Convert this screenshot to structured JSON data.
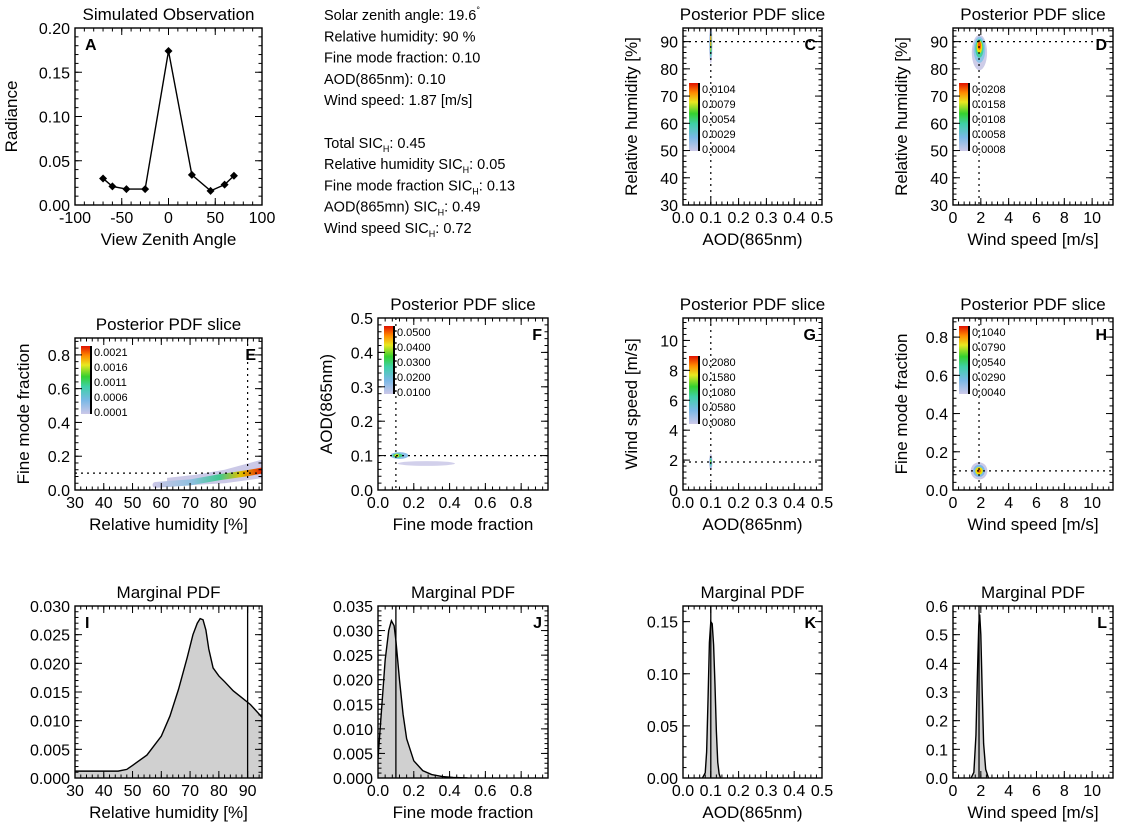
{
  "info": {
    "lines": [
      {
        "parts": [
          [
            "Solar zenith angle:  19.6",
            ""
          ],
          [
            "°",
            "sup"
          ]
        ]
      },
      {
        "parts": [
          [
            "Relative humidity:   90 %",
            ""
          ]
        ]
      },
      {
        "parts": [
          [
            "Fine mode fraction:   0.10",
            ""
          ]
        ]
      },
      {
        "parts": [
          [
            "AOD(865nm):   0.10",
            ""
          ]
        ]
      },
      {
        "parts": [
          [
            "Wind speed:    1.87 [m/s]",
            ""
          ]
        ]
      },
      {
        "parts": [
          [
            "",
            ""
          ]
        ]
      },
      {
        "parts": [
          [
            "Total SIC",
            ""
          ],
          [
            "H",
            "sub"
          ],
          [
            ":  0.45",
            ""
          ]
        ]
      },
      {
        "parts": [
          [
            "Relative humidity SIC",
            ""
          ],
          [
            "H",
            "sub"
          ],
          [
            ":  0.05",
            ""
          ]
        ]
      },
      {
        "parts": [
          [
            "Fine mode fraction SIC",
            ""
          ],
          [
            "H",
            "sub"
          ],
          [
            ":  0.13",
            ""
          ]
        ]
      },
      {
        "parts": [
          [
            "AOD(865mn) SIC",
            ""
          ],
          [
            "H",
            "sub"
          ],
          [
            ":  0.49",
            ""
          ]
        ]
      },
      {
        "parts": [
          [
            "Wind speed SIC",
            ""
          ],
          [
            "H",
            "sub"
          ],
          [
            ":  0.72",
            ""
          ]
        ]
      }
    ]
  },
  "chart_data": [
    {
      "id": "A",
      "type": "line",
      "title": "Simulated Observation",
      "xlabel": "View Zenith Angle",
      "ylabel": "Radiance",
      "xlim": [
        -100,
        100
      ],
      "ylim": [
        0,
        0.2
      ],
      "xticks": [
        "-100",
        "-50",
        "0",
        "50",
        "100"
      ],
      "yticks": [
        "0.00",
        "0.05",
        "0.10",
        "0.15",
        "0.20"
      ],
      "x": [
        -70,
        -60,
        -45,
        -25,
        0,
        25,
        45,
        60,
        70
      ],
      "y": [
        0.03,
        0.021,
        0.018,
        0.018,
        0.174,
        0.034,
        0.016,
        0.023,
        0.033
      ],
      "marker": "diamond"
    },
    {
      "id": "C",
      "type": "heatmap",
      "title": "Posterior PDF slice",
      "xlabel": "AOD(865nm)",
      "ylabel": "Relative humidity [%]",
      "xlim": [
        0,
        0.5
      ],
      "ylim": [
        30,
        95
      ],
      "xticks": [
        "0.0",
        "0.1",
        "0.2",
        "0.3",
        "0.4",
        "0.5"
      ],
      "yticks": [
        "30",
        "40",
        "50",
        "60",
        "70",
        "80",
        "90"
      ],
      "true_x": 0.1,
      "true_y": 90,
      "colorbar": [
        "0.0104",
        "0.0079",
        "0.0054",
        "0.0029",
        "0.0004"
      ]
    },
    {
      "id": "D",
      "type": "heatmap",
      "title": "Posterior PDF slice",
      "xlabel": "Wind speed [m/s]",
      "ylabel": "Relative humidity [%]",
      "xlim": [
        0,
        11.5
      ],
      "ylim": [
        30,
        95
      ],
      "xticks": [
        "0",
        "2",
        "4",
        "6",
        "8",
        "10"
      ],
      "yticks": [
        "30",
        "40",
        "50",
        "60",
        "70",
        "80",
        "90"
      ],
      "true_x": 1.87,
      "true_y": 90,
      "colorbar": [
        "0.0208",
        "0.0158",
        "0.0108",
        "0.0058",
        "0.0008"
      ]
    },
    {
      "id": "E",
      "type": "heatmap",
      "title": "Posterior PDF slice",
      "xlabel": "Relative humidity [%]",
      "ylabel": "Fine mode fraction",
      "xlim": [
        30,
        95
      ],
      "ylim": [
        0,
        0.9
      ],
      "xticks": [
        "30",
        "40",
        "50",
        "60",
        "70",
        "80",
        "90"
      ],
      "yticks": [
        "0.0",
        "0.2",
        "0.4",
        "0.6",
        "0.8"
      ],
      "true_x": 90,
      "true_y": 0.1,
      "colorbar": [
        "0.0021",
        "0.0016",
        "0.0011",
        "0.0006",
        "0.0001"
      ]
    },
    {
      "id": "F",
      "type": "heatmap",
      "title": "Posterior PDF slice",
      "xlabel": "Fine mode fraction",
      "ylabel": "AOD(865nm)",
      "xlim": [
        0,
        0.95
      ],
      "ylim": [
        0,
        0.5
      ],
      "xticks": [
        "0.0",
        "0.2",
        "0.4",
        "0.6",
        "0.8"
      ],
      "yticks": [
        "0.0",
        "0.1",
        "0.2",
        "0.3",
        "0.4",
        "0.5"
      ],
      "true_x": 0.1,
      "true_y": 0.1,
      "colorbar": [
        "0.0500",
        "0.0400",
        "0.0300",
        "0.0200",
        "0.0100"
      ]
    },
    {
      "id": "G",
      "type": "heatmap",
      "title": "Posterior PDF slice",
      "xlabel": "AOD(865nm)",
      "ylabel": "Wind speed [m/s]",
      "xlim": [
        0,
        0.5
      ],
      "ylim": [
        0,
        11.5
      ],
      "xticks": [
        "0.0",
        "0.1",
        "0.2",
        "0.3",
        "0.4",
        "0.5"
      ],
      "yticks": [
        "0",
        "2",
        "4",
        "6",
        "8",
        "10"
      ],
      "true_x": 0.1,
      "true_y": 1.87,
      "colorbar": [
        "0.2080",
        "0.1580",
        "0.1080",
        "0.0580",
        "0.0080"
      ]
    },
    {
      "id": "H",
      "type": "heatmap",
      "title": "Posterior PDF slice",
      "xlabel": "Wind speed [m/s]",
      "ylabel": "Fine mode fraction",
      "xlim": [
        0,
        11.5
      ],
      "ylim": [
        0,
        0.9
      ],
      "xticks": [
        "0",
        "2",
        "4",
        "6",
        "8",
        "10"
      ],
      "yticks": [
        "0.0",
        "0.2",
        "0.4",
        "0.6",
        "0.8"
      ],
      "true_x": 1.87,
      "true_y": 0.1,
      "colorbar": [
        "0.1040",
        "0.0790",
        "0.0540",
        "0.0290",
        "0.0040"
      ]
    },
    {
      "id": "I",
      "type": "area",
      "title": "Marginal PDF",
      "xlabel": "Relative humidity [%]",
      "ylabel": "",
      "xlim": [
        30,
        95
      ],
      "ylim": [
        0,
        0.03
      ],
      "xticks": [
        "30",
        "40",
        "50",
        "60",
        "70",
        "80",
        "90"
      ],
      "yticks": [
        "0.000",
        "0.005",
        "0.010",
        "0.015",
        "0.020",
        "0.025",
        "0.030"
      ],
      "true_x": 90,
      "x": [
        30,
        40,
        45,
        48,
        50,
        55,
        60,
        63,
        66,
        69,
        71,
        72.5,
        73.5,
        74.5,
        75.5,
        76.5,
        78,
        80,
        82,
        85,
        88,
        91,
        95
      ],
      "y": [
        0.0012,
        0.0012,
        0.0012,
        0.0015,
        0.0022,
        0.004,
        0.0073,
        0.0108,
        0.0155,
        0.021,
        0.025,
        0.027,
        0.0278,
        0.0276,
        0.0258,
        0.0225,
        0.0192,
        0.0178,
        0.0168,
        0.0152,
        0.014,
        0.0128,
        0.0106
      ]
    },
    {
      "id": "J",
      "type": "area",
      "title": "Marginal PDF",
      "xlabel": "Fine mode fraction",
      "ylabel": "",
      "xlim": [
        0,
        0.95
      ],
      "ylim": [
        0,
        0.035
      ],
      "xticks": [
        "0.0",
        "0.2",
        "0.4",
        "0.6",
        "0.8"
      ],
      "yticks": [
        "0.000",
        "0.005",
        "0.010",
        "0.015",
        "0.020",
        "0.025",
        "0.030",
        "0.035"
      ],
      "true_x": 0.1,
      "x": [
        0,
        0.02,
        0.04,
        0.06,
        0.075,
        0.09,
        0.1,
        0.12,
        0.14,
        0.16,
        0.2,
        0.25,
        0.3,
        0.36,
        0.42,
        0.5
      ],
      "y": [
        0.004,
        0.014,
        0.024,
        0.03,
        0.032,
        0.031,
        0.028,
        0.02,
        0.013,
        0.008,
        0.0035,
        0.0015,
        0.0007,
        0.0003,
        0.0001,
        0.0
      ]
    },
    {
      "id": "K",
      "type": "area",
      "title": "Marginal PDF",
      "xlabel": "AOD(865nm)",
      "ylabel": "",
      "xlim": [
        0,
        0.5
      ],
      "ylim": [
        0,
        0.165
      ],
      "xticks": [
        "0.0",
        "0.1",
        "0.2",
        "0.3",
        "0.4",
        "0.5"
      ],
      "yticks": [
        "0.00",
        "0.05",
        "0.10",
        "0.15"
      ],
      "true_x": 0.1,
      "x": [
        0.07,
        0.08,
        0.085,
        0.09,
        0.095,
        0.1,
        0.105,
        0.11,
        0.115,
        0.12,
        0.125,
        0.13,
        0.135
      ],
      "y": [
        0.0,
        0.005,
        0.025,
        0.075,
        0.13,
        0.15,
        0.148,
        0.128,
        0.09,
        0.045,
        0.015,
        0.004,
        0.0
      ]
    },
    {
      "id": "L",
      "type": "area",
      "title": "Marginal PDF",
      "xlabel": "Wind speed [m/s]",
      "ylabel": "",
      "xlim": [
        0,
        11.5
      ],
      "ylim": [
        0,
        0.6
      ],
      "xticks": [
        "0",
        "2",
        "4",
        "6",
        "8",
        "10"
      ],
      "yticks": [
        "0.0",
        "0.1",
        "0.2",
        "0.3",
        "0.4",
        "0.5",
        "0.6"
      ],
      "true_x": 1.87,
      "x": [
        1.3,
        1.5,
        1.65,
        1.75,
        1.85,
        1.92,
        2.0,
        2.1,
        2.2,
        2.35,
        2.55
      ],
      "y": [
        0.0,
        0.02,
        0.15,
        0.35,
        0.53,
        0.57,
        0.5,
        0.3,
        0.12,
        0.03,
        0.0
      ]
    }
  ]
}
